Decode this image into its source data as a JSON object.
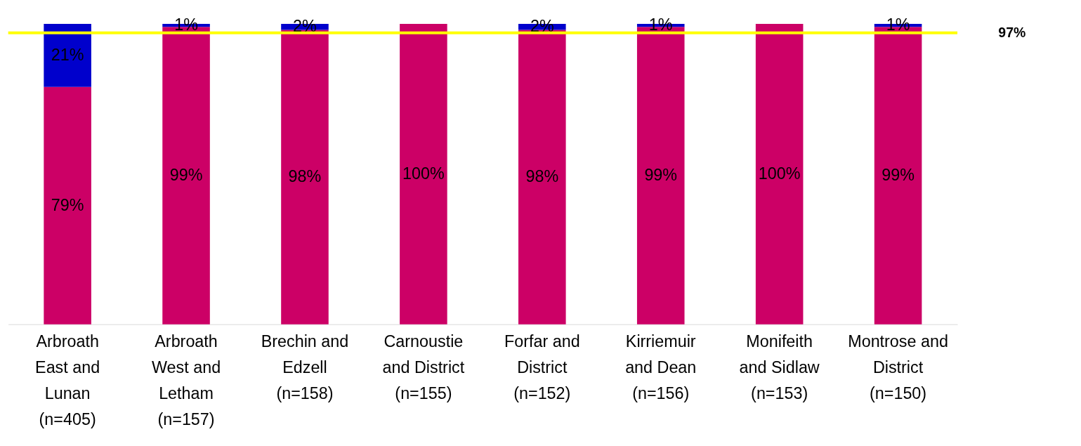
{
  "chart_data": {
    "type": "bar",
    "stacked": true,
    "categories": [
      "Arbroath East and Lunan (n=405)",
      "Arbroath West and Letham (n=157)",
      "Brechin and Edzell (n=158)",
      "Carnoustie and District (n=155)",
      "Forfar and District (n=152)",
      "Kirriemuir and Dean (n=156)",
      "Monifeith and Sidlaw (n=153)",
      "Montrose and District (n=150)"
    ],
    "series": [
      {
        "color": "#cc0066",
        "values": [
          79,
          99,
          98,
          100,
          98,
          99,
          100,
          99
        ],
        "value_labels": [
          "79%",
          "99%",
          "98%",
          "100%",
          "98%",
          "99%",
          "100%",
          "99%"
        ]
      },
      {
        "color": "#0000cc",
        "values": [
          21,
          1,
          2,
          0,
          2,
          1,
          0,
          1
        ],
        "value_labels": [
          "21%",
          "1%",
          "2%",
          null,
          "2%",
          "1%",
          null,
          "1%"
        ]
      }
    ],
    "ylim": [
      0,
      100
    ],
    "tick_labels": "x",
    "grid": false,
    "ref_lines": [
      {
        "axis": "y",
        "value": 97,
        "label": "97%",
        "color": "#ffff00",
        "line_style": "solid"
      }
    ]
  }
}
